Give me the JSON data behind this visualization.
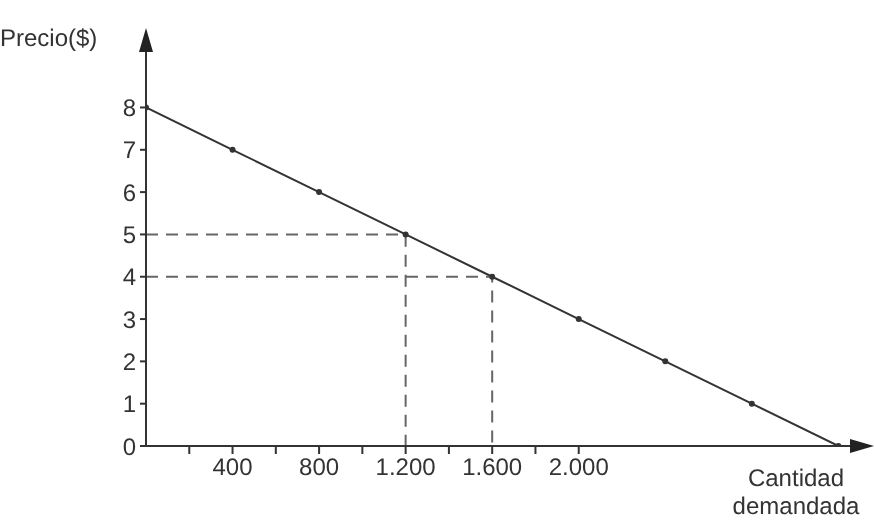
{
  "chart_data": {
    "type": "line",
    "xlabel": "Cantidad demandada",
    "ylabel": "Precio($)",
    "xlim": [
      0,
      3300
    ],
    "ylim": [
      0,
      9.5
    ],
    "xticks": [
      {
        "value": 200,
        "label": null
      },
      400,
      {
        "value": 600,
        "label": null
      },
      800,
      {
        "value": 1000,
        "label": null
      },
      {
        "value": 1200,
        "label": "1.200"
      },
      {
        "value": 1400,
        "label": null
      },
      {
        "value": 1600,
        "label": "1.600"
      },
      {
        "value": 1800,
        "label": null
      },
      {
        "value": 2000,
        "label": "2.000"
      }
    ],
    "yticks": [
      0,
      1,
      2,
      3,
      4,
      5,
      6,
      7,
      8
    ],
    "grid": false,
    "series": [
      {
        "color": "#333333",
        "marker": "circle",
        "line_style": "solid",
        "x": [
          0,
          400,
          800,
          1200,
          1600,
          2000,
          2400,
          2800,
          3200
        ],
        "values": [
          8,
          7,
          6,
          5,
          4,
          3,
          2,
          1,
          0
        ]
      },
      {
        "color": "#666666",
        "marker": "none",
        "line_style": "dashed",
        "x": [
          0,
          1200,
          1200
        ],
        "values": [
          5,
          5,
          0
        ]
      },
      {
        "color": "#666666",
        "marker": "none",
        "line_style": "dashed",
        "x": [
          0,
          1600,
          1600
        ],
        "values": [
          4,
          4,
          0
        ]
      }
    ]
  }
}
